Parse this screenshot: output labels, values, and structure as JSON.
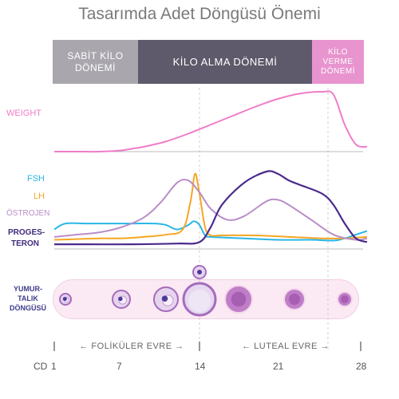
{
  "title": "Tasarımda Adet Döngüsü Önemi",
  "phases": {
    "stable": "SABİT KİLO DÖNEMİ",
    "gain": "KİLO ALMA DÖNEMİ",
    "loss": "KİLO VERME DÖNEMİ"
  },
  "labels": {
    "weight": "WEIGHT",
    "fsh": "FSH",
    "lh": "LH",
    "ostrojen": "ÖSTROJEN",
    "progesteron_1": "PROGES-",
    "progesteron_2": "TERON",
    "yumurtalik": "YUMUR- TALIK DÖNGÜSÜ"
  },
  "phase_axis": {
    "follicular": "FOLİKÜLER EVRE",
    "luteal": "LUTEAL EVRE"
  },
  "colors": {
    "weight": "#f07cc8",
    "fsh": "#29b6e6",
    "lh": "#f5a623",
    "estrogen": "#b98ec8",
    "progesterone": "#4b2a8c",
    "follicle": "#b572c0"
  },
  "chart_data": {
    "type": "line",
    "x_label": "CD",
    "x_ticks": [
      1,
      7,
      14,
      21,
      28
    ],
    "xlim": [
      1,
      29
    ],
    "series": [
      {
        "name": "WEIGHT",
        "x": [
          1,
          3,
          5,
          7,
          8,
          9,
          11,
          13,
          15,
          17,
          19,
          21,
          23,
          25,
          26,
          27,
          28,
          29
        ],
        "y": [
          0,
          0,
          0,
          0.02,
          0.05,
          0.08,
          0.17,
          0.3,
          0.45,
          0.6,
          0.75,
          0.88,
          0.97,
          1.0,
          0.95,
          0.45,
          0.12,
          0.08
        ]
      },
      {
        "name": "FSH",
        "x": [
          1,
          2,
          4,
          6,
          8,
          10,
          11,
          12,
          13,
          13.5,
          14,
          14.5,
          15,
          18,
          21,
          24,
          26,
          27,
          28,
          29
        ],
        "y": [
          0.22,
          0.3,
          0.3,
          0.3,
          0.3,
          0.3,
          0.28,
          0.22,
          0.28,
          0.33,
          0.28,
          0.14,
          0.12,
          0.1,
          0.08,
          0.08,
          0.07,
          0.1,
          0.15,
          0.2
        ]
      },
      {
        "name": "LH",
        "x": [
          1,
          3,
          5,
          7,
          9,
          11,
          12.5,
          13.2,
          13.6,
          14,
          14.5,
          15,
          16,
          19,
          22,
          25,
          27,
          29
        ],
        "y": [
          0.08,
          0.09,
          0.1,
          0.1,
          0.12,
          0.15,
          0.22,
          0.6,
          0.97,
          0.7,
          0.25,
          0.14,
          0.14,
          0.14,
          0.12,
          0.1,
          0.1,
          0.12
        ]
      },
      {
        "name": "ÖSTROJEN",
        "x": [
          1,
          3,
          5,
          7,
          9,
          10.5,
          12,
          13,
          14,
          15,
          16.5,
          18,
          20,
          21,
          22,
          24,
          26,
          28,
          29
        ],
        "y": [
          0.12,
          0.15,
          0.18,
          0.25,
          0.38,
          0.58,
          0.85,
          0.88,
          0.72,
          0.5,
          0.35,
          0.4,
          0.6,
          0.62,
          0.55,
          0.35,
          0.15,
          0.08,
          0.1
        ]
      },
      {
        "name": "PROGES- TERON",
        "x": [
          1,
          4,
          8,
          12,
          14,
          15,
          16,
          18,
          20,
          21,
          22,
          23,
          25,
          26,
          27,
          28,
          29
        ],
        "y": [
          0.02,
          0.02,
          0.02,
          0.03,
          0.05,
          0.25,
          0.55,
          0.85,
          1.0,
          0.97,
          0.88,
          0.82,
          0.7,
          0.55,
          0.3,
          0.1,
          0.05
        ]
      }
    ],
    "ylim": [
      0,
      1
    ],
    "follicles": [
      {
        "day": 2,
        "r": 0.35,
        "stage": "primary"
      },
      {
        "day": 7,
        "r": 0.55,
        "stage": "secondary"
      },
      {
        "day": 11,
        "r": 0.75,
        "stage": "tertiary"
      },
      {
        "day": 14,
        "r": 1.0,
        "stage": "graafian"
      },
      {
        "day": 17.5,
        "r": 0.85,
        "stage": "corpus-luteum"
      },
      {
        "day": 22.5,
        "r": 0.65,
        "stage": "corpus-luteum"
      },
      {
        "day": 27,
        "r": 0.45,
        "stage": "regressing"
      }
    ],
    "ovulation_day": 14
  }
}
